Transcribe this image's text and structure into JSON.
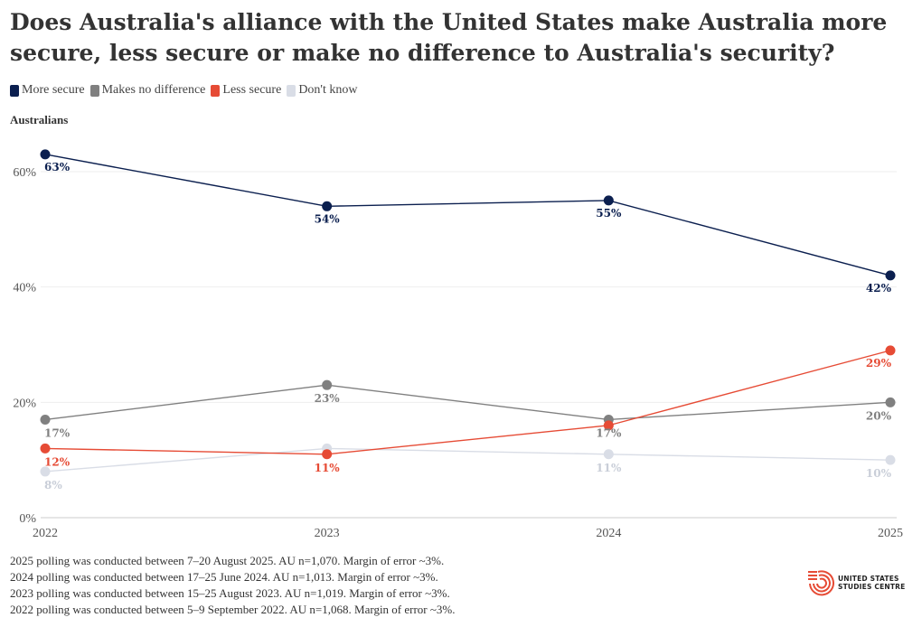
{
  "title": "Does Australia's alliance with the United States make Australia more secure, less secure or make no difference to Australia's security?",
  "subtitle": "Australians",
  "legend": [
    {
      "label": "More secure",
      "color": "#0b1f4f"
    },
    {
      "label": "Makes no difference",
      "color": "#808080"
    },
    {
      "label": "Less secure",
      "color": "#e64b35"
    },
    {
      "label": "Don't know",
      "color": "#d9dde6"
    }
  ],
  "chart_data": {
    "type": "line",
    "title": "Does Australia's alliance with the United States make Australia more secure, less secure or make no difference to Australia's security?",
    "x": [
      "2022",
      "2023",
      "2024",
      "2025"
    ],
    "ylim": [
      0,
      60
    ],
    "yticks": [
      "0%",
      "20%",
      "40%",
      "60%"
    ],
    "ytick_values": [
      0,
      20,
      40,
      60
    ],
    "xlabel": "",
    "ylabel": "",
    "grid": true,
    "series": [
      {
        "name": "More secure",
        "color": "#0b1f4f",
        "values": [
          63,
          54,
          55,
          42
        ],
        "labels": [
          "63%",
          "54%",
          "55%",
          "42%"
        ]
      },
      {
        "name": "Makes no difference",
        "color": "#808080",
        "values": [
          17,
          23,
          17,
          20
        ],
        "labels": [
          "17%",
          "23%",
          "17%",
          "20%"
        ]
      },
      {
        "name": "Less secure",
        "color": "#e64b35",
        "values": [
          12,
          11,
          16,
          29
        ],
        "labels": [
          "12%",
          "11%",
          "",
          "29%"
        ]
      },
      {
        "name": "Don't know",
        "color": "#d9dde6",
        "values": [
          8,
          12,
          11,
          10
        ],
        "labels": [
          "8%",
          "",
          "11%",
          "10%"
        ]
      }
    ]
  },
  "footnotes": [
    "2025 polling was conducted between 7–20 August 2025. AU n=1,070. Margin of error ~3%.",
    "2024 polling was conducted between 17–25 June 2024. AU n=1,013. Margin of error ~3%.",
    "2023 polling was conducted between 15–25 August 2023. AU n=1,019. Margin of error ~3%.",
    "2022 polling was conducted between 5–9 September 2022. AU n=1,068. Margin of error ~3%."
  ],
  "logo": {
    "line1": "UNITED STATES",
    "line2": "STUDIES CENTRE",
    "color": "#e64b35"
  }
}
